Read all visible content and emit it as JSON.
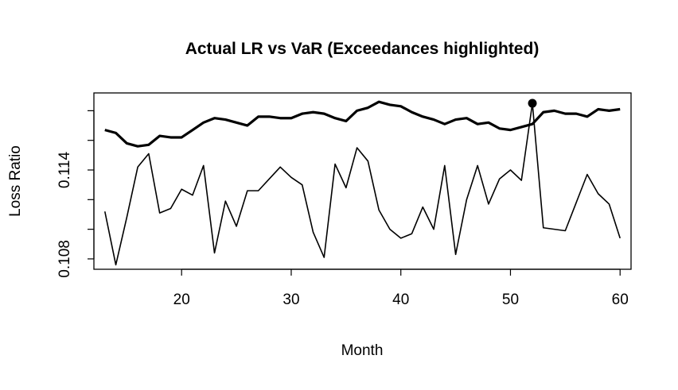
{
  "chart_data": {
    "type": "line",
    "title": "Actual LR vs VaR (Exceedances highlighted)",
    "xlabel": "Month",
    "ylabel": "Loss Ratio",
    "xlim": [
      12,
      61
    ],
    "ylim": [
      0.1073,
      0.1192
    ],
    "x_ticks": [
      20,
      30,
      40,
      50,
      60
    ],
    "x_tick_labels": [
      "20",
      "30",
      "40",
      "50",
      "60"
    ],
    "y_ticks": [
      0.108,
      0.11,
      0.112,
      0.114,
      0.116,
      0.118
    ],
    "y_tick_labels": [
      "0.108",
      "",
      "",
      "0.114",
      "",
      ""
    ],
    "grid": false,
    "x": [
      13,
      14,
      15,
      16,
      17,
      18,
      19,
      20,
      21,
      22,
      23,
      24,
      25,
      26,
      27,
      28,
      29,
      30,
      31,
      32,
      33,
      34,
      35,
      36,
      37,
      38,
      39,
      40,
      41,
      42,
      43,
      44,
      45,
      46,
      47,
      48,
      49,
      50,
      51,
      52,
      53,
      54,
      55,
      56,
      57,
      58,
      59,
      60
    ],
    "series": [
      {
        "style": "thin",
        "color": "#000000",
        "values": [
          0.1112,
          0.1076,
          0.1108,
          0.1142,
          0.1151,
          0.1111,
          0.1114,
          0.1127,
          0.1123,
          0.1143,
          0.1084,
          0.1119,
          0.1102,
          0.1126,
          0.1126,
          0.1134,
          0.1142,
          0.1135,
          0.113,
          0.1098,
          0.1081,
          0.1144,
          0.1128,
          0.1155,
          0.1146,
          0.1113,
          0.11,
          0.1094,
          0.1097,
          0.1115,
          0.11,
          0.1143,
          0.1083,
          0.112,
          0.1143,
          0.1117,
          0.1134,
          0.114,
          0.1133,
          0.1185,
          0.1101,
          0.11,
          0.1099,
          0.1118,
          0.1137,
          0.1124,
          0.1117,
          0.1094
        ]
      },
      {
        "style": "thick",
        "color": "#000000",
        "values": [
          0.1167,
          0.1165,
          0.1158,
          0.1156,
          0.1157,
          0.1163,
          0.1162,
          0.1162,
          0.1167,
          0.1172,
          0.1175,
          0.1174,
          0.1172,
          0.117,
          0.1176,
          0.1176,
          0.1175,
          0.1175,
          0.1178,
          0.1179,
          0.1178,
          0.1175,
          0.1173,
          0.118,
          0.1182,
          0.1186,
          0.1184,
          0.1183,
          0.1179,
          0.1176,
          0.1174,
          0.1171,
          0.1174,
          0.1175,
          0.1171,
          0.1172,
          0.1168,
          0.1167,
          0.1169,
          0.1171,
          0.1179,
          0.118,
          0.1178,
          0.1178,
          0.1176,
          0.1181,
          0.118,
          0.1181
        ]
      }
    ],
    "exceedances": [
      {
        "x": 52,
        "y": 0.1185
      }
    ]
  }
}
